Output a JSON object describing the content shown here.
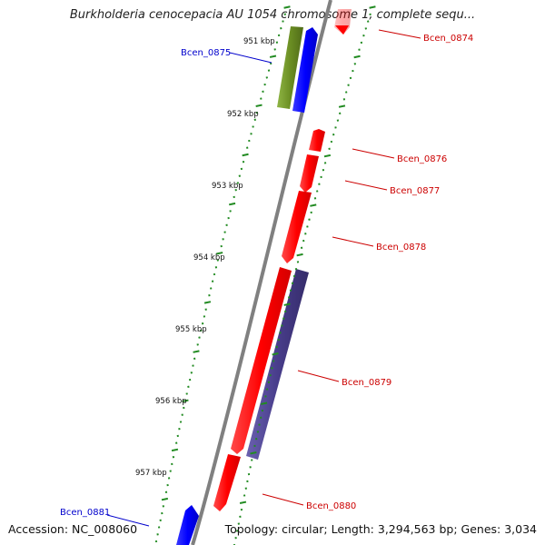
{
  "title": "Burkholderia cenocepacia AU 1054 chromosome 1, complete sequ...",
  "footer": {
    "accession": "Accession: NC_008060",
    "info": "Topology: circular; Length: 3,294,563 bp; Genes: 3,034"
  },
  "kbp_labels": [
    "951 kbp",
    "952 kbp",
    "953 kbp",
    "954 kbp",
    "955 kbp",
    "956 kbp",
    "957 kbp"
  ],
  "genes": [
    {
      "label": "Bcen_0874",
      "color": "#ff0000"
    },
    {
      "label": "Bcen_0875",
      "color": "#0000cc"
    },
    {
      "label": "Bcen_0876",
      "color": "#ff0000"
    },
    {
      "label": "Bcen_0877",
      "color": "#ff0000"
    },
    {
      "label": "Bcen_0878",
      "color": "#ff0000"
    },
    {
      "label": "Bcen_0879",
      "color": "#ff0000"
    },
    {
      "label": "Bcen_0880",
      "color": "#ff0000"
    },
    {
      "label": "Bcen_0881",
      "color": "#0000cc"
    }
  ],
  "colors": {
    "backbone": "#808080",
    "tick": "#228b22",
    "gene_red": "#ff0000",
    "gene_blue": "#0000ff",
    "gene_olive": "#6b8e23",
    "gene_purple": "#483d8b",
    "label_red": "#cc0000",
    "label_blue": "#0000cc"
  }
}
